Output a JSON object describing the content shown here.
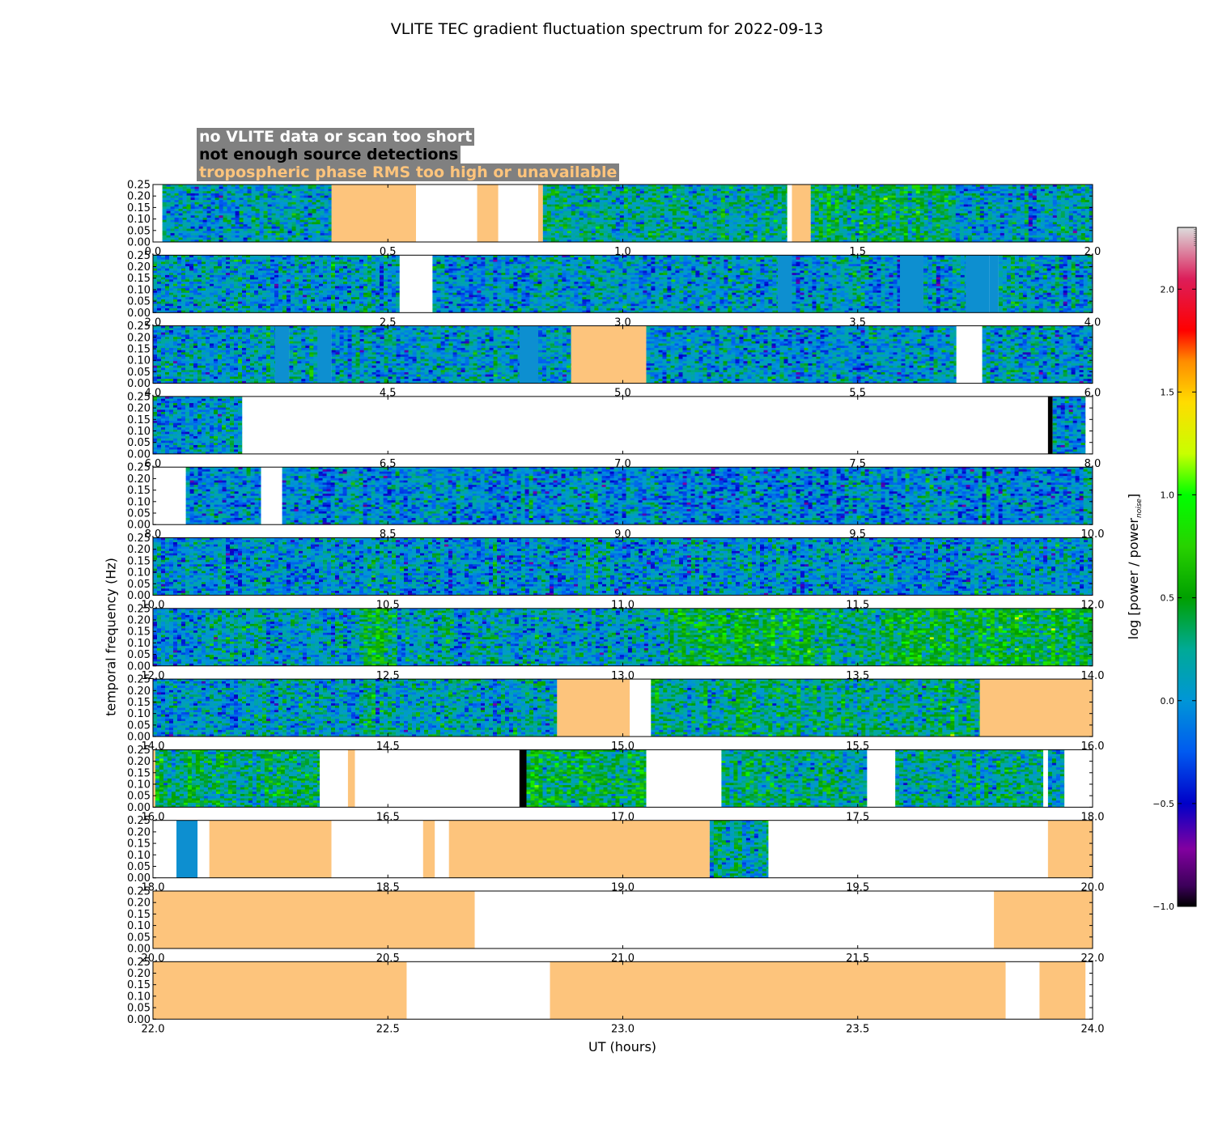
{
  "chart_data": {
    "type": "heatmap",
    "title": "VLITE TEC gradient fluctuation spectrum for 2022-09-13",
    "xlabel": "UT (hours)",
    "ylabel": "temporal frequency (Hz)",
    "ylim": [
      0.0,
      0.25
    ],
    "yticks": [
      "0.00",
      "0.05",
      "0.10",
      "0.15",
      "0.20",
      "0.25"
    ],
    "colorbar": {
      "label": "log [power / power",
      "label_sub": "noise",
      "label_end": "]",
      "range": [
        -1.0,
        2.3
      ],
      "ticks": [
        "−1.0",
        "−0.5",
        "0.0",
        "0.5",
        "1.0",
        "1.5",
        "2.0"
      ],
      "tick_values": [
        -1.0,
        -0.5,
        0.0,
        0.5,
        1.0,
        1.5,
        2.0
      ]
    },
    "legend": [
      {
        "label": "no VLITE data or scan too short",
        "color": "#ffffff",
        "status": "nodata"
      },
      {
        "label": "not enough source detections",
        "color": "#000000",
        "status": "nodetect"
      },
      {
        "label": "tropospheric phase RMS too high or unavailable",
        "color": "#fdc47c",
        "status": "trop"
      }
    ],
    "panels": [
      {
        "xlim": [
          0,
          2
        ],
        "xticks": [
          "0.0",
          "0.5",
          "1.0",
          "1.5",
          "2.0"
        ],
        "segments": [
          [
            0,
            0.02,
            "nodata"
          ],
          [
            0.02,
            0.38,
            "data",
            0.05
          ],
          [
            0.38,
            0.56,
            "trop"
          ],
          [
            0.56,
            0.69,
            "nodata"
          ],
          [
            0.69,
            0.735,
            "trop"
          ],
          [
            0.735,
            0.82,
            "nodata"
          ],
          [
            0.82,
            0.83,
            "trop"
          ],
          [
            0.83,
            1.35,
            "data",
            0.2
          ],
          [
            1.35,
            1.36,
            "nodata"
          ],
          [
            1.36,
            1.4,
            "trop"
          ],
          [
            1.4,
            1.7,
            "data",
            0.35
          ],
          [
            1.7,
            2.0,
            "data",
            0.05
          ]
        ]
      },
      {
        "xlim": [
          2,
          4
        ],
        "xticks": [
          "2.0",
          "2.5",
          "3.0",
          "3.5",
          "4.0"
        ],
        "segments": [
          [
            2.0,
            2.525,
            "data",
            0.05
          ],
          [
            2.525,
            2.595,
            "nodata"
          ],
          [
            2.595,
            3.33,
            "data",
            0.05
          ],
          [
            3.33,
            3.36,
            "flat"
          ],
          [
            3.36,
            3.59,
            "data",
            0.05
          ],
          [
            3.59,
            3.64,
            "flat"
          ],
          [
            3.64,
            3.65,
            "data",
            0.05
          ],
          [
            3.65,
            3.73,
            "data",
            0.05
          ],
          [
            3.73,
            3.78,
            "flat"
          ],
          [
            3.78,
            3.8,
            "flat"
          ],
          [
            3.8,
            3.86,
            "data",
            0.05
          ],
          [
            3.86,
            4.0,
            "data",
            0.05
          ]
        ]
      },
      {
        "xlim": [
          4,
          6
        ],
        "xticks": [
          "4.0",
          "4.5",
          "5.0",
          "5.5",
          "6.0"
        ],
        "segments": [
          [
            4.0,
            4.26,
            "data",
            0.05
          ],
          [
            4.26,
            4.29,
            "flat"
          ],
          [
            4.29,
            4.35,
            "data",
            0.05
          ],
          [
            4.35,
            4.38,
            "flat"
          ],
          [
            4.38,
            4.78,
            "data",
            0.05
          ],
          [
            4.78,
            4.82,
            "flat"
          ],
          [
            4.82,
            4.89,
            "data",
            0.05
          ],
          [
            4.89,
            5.05,
            "trop"
          ],
          [
            5.05,
            5.71,
            "data",
            0.05
          ],
          [
            5.71,
            5.765,
            "nodata"
          ],
          [
            5.765,
            6.0,
            "data",
            0.08
          ]
        ]
      },
      {
        "xlim": [
          6,
          8
        ],
        "xticks": [
          "6.0",
          "6.5",
          "7.0",
          "7.5",
          "8.0"
        ],
        "segments": [
          [
            6.0,
            6.19,
            "data",
            0.05
          ],
          [
            6.19,
            7.905,
            "nodata"
          ],
          [
            7.905,
            7.915,
            "nodetect"
          ],
          [
            7.915,
            7.985,
            "data",
            0.0
          ],
          [
            7.985,
            8.0,
            "nodata"
          ]
        ]
      },
      {
        "xlim": [
          8,
          10
        ],
        "xticks": [
          "8.0",
          "8.5",
          "9.0",
          "9.5",
          "10.0"
        ],
        "segments": [
          [
            8.0,
            8.07,
            "nodata"
          ],
          [
            8.07,
            8.23,
            "data",
            0.0
          ],
          [
            8.23,
            8.275,
            "nodata"
          ],
          [
            8.275,
            10.0,
            "data",
            0.0
          ]
        ]
      },
      {
        "xlim": [
          10,
          12
        ],
        "xticks": [
          "10.0",
          "10.5",
          "11.0",
          "11.5",
          "12.0"
        ],
        "segments": [
          [
            10.0,
            12.0,
            "data",
            0.02
          ]
        ]
      },
      {
        "xlim": [
          12,
          14
        ],
        "xticks": [
          "12.0",
          "12.5",
          "13.0",
          "13.5",
          "14.0"
        ],
        "segments": [
          [
            12.0,
            12.44,
            "data",
            0.05
          ],
          [
            12.44,
            12.52,
            "data",
            0.45
          ],
          [
            12.52,
            13.1,
            "data",
            0.1
          ],
          [
            13.1,
            13.4,
            "data",
            0.45
          ],
          [
            13.4,
            13.55,
            "data",
            0.25
          ],
          [
            13.55,
            14.0,
            "data",
            0.45
          ]
        ]
      },
      {
        "xlim": [
          14,
          16
        ],
        "xticks": [
          "14.0",
          "14.5",
          "15.0",
          "15.5",
          "16.0"
        ],
        "segments": [
          [
            14.0,
            14.86,
            "data",
            0.1
          ],
          [
            14.86,
            15.015,
            "trop"
          ],
          [
            15.015,
            15.06,
            "nodata"
          ],
          [
            15.06,
            15.76,
            "data",
            0.25
          ],
          [
            15.76,
            16.0,
            "trop"
          ]
        ]
      },
      {
        "xlim": [
          16,
          18
        ],
        "xticks": [
          "16.0",
          "16.5",
          "17.0",
          "17.5",
          "18.0"
        ],
        "segments": [
          [
            16.0,
            16.005,
            "trop"
          ],
          [
            16.005,
            16.355,
            "data",
            0.3
          ],
          [
            16.355,
            16.415,
            "nodata"
          ],
          [
            16.415,
            16.43,
            "trop"
          ],
          [
            16.43,
            16.78,
            "nodata"
          ],
          [
            16.78,
            16.795,
            "nodetect"
          ],
          [
            16.795,
            17.05,
            "data",
            0.4
          ],
          [
            17.05,
            17.21,
            "nodata"
          ],
          [
            17.21,
            17.52,
            "data",
            0.25
          ],
          [
            17.52,
            17.58,
            "nodata"
          ],
          [
            17.58,
            17.895,
            "data",
            0.2
          ],
          [
            17.895,
            17.905,
            "nodata"
          ],
          [
            17.905,
            17.94,
            "data",
            0.1
          ],
          [
            17.94,
            18.0,
            "nodata"
          ]
        ]
      },
      {
        "xlim": [
          18,
          20
        ],
        "xticks": [
          "18.0",
          "18.5",
          "19.0",
          "19.5",
          "20.0"
        ],
        "segments": [
          [
            18.0,
            18.05,
            "nodata"
          ],
          [
            18.05,
            18.095,
            "flat"
          ],
          [
            18.095,
            18.12,
            "nodata"
          ],
          [
            18.12,
            18.38,
            "trop"
          ],
          [
            18.38,
            18.575,
            "nodata"
          ],
          [
            18.575,
            18.6,
            "trop"
          ],
          [
            18.6,
            18.63,
            "nodata"
          ],
          [
            18.63,
            19.185,
            "trop"
          ],
          [
            19.185,
            19.31,
            "data",
            0.2
          ],
          [
            19.31,
            19.905,
            "nodata"
          ],
          [
            19.905,
            20.0,
            "trop"
          ]
        ]
      },
      {
        "xlim": [
          20,
          22
        ],
        "xticks": [
          "20.0",
          "20.5",
          "21.0",
          "21.5",
          "22.0"
        ],
        "segments": [
          [
            20.0,
            20.685,
            "trop"
          ],
          [
            20.685,
            21.79,
            "nodata"
          ],
          [
            21.79,
            22.0,
            "trop"
          ]
        ]
      },
      {
        "xlim": [
          22,
          24
        ],
        "xticks": [
          "22.0",
          "22.5",
          "23.0",
          "23.5",
          "24.0"
        ],
        "segments": [
          [
            22.0,
            22.54,
            "trop"
          ],
          [
            22.54,
            22.845,
            "nodata"
          ],
          [
            22.845,
            23.815,
            "trop"
          ],
          [
            23.815,
            23.887,
            "nodata"
          ],
          [
            23.887,
            23.985,
            "trop"
          ],
          [
            23.985,
            24.0,
            "nodata"
          ]
        ]
      }
    ]
  }
}
